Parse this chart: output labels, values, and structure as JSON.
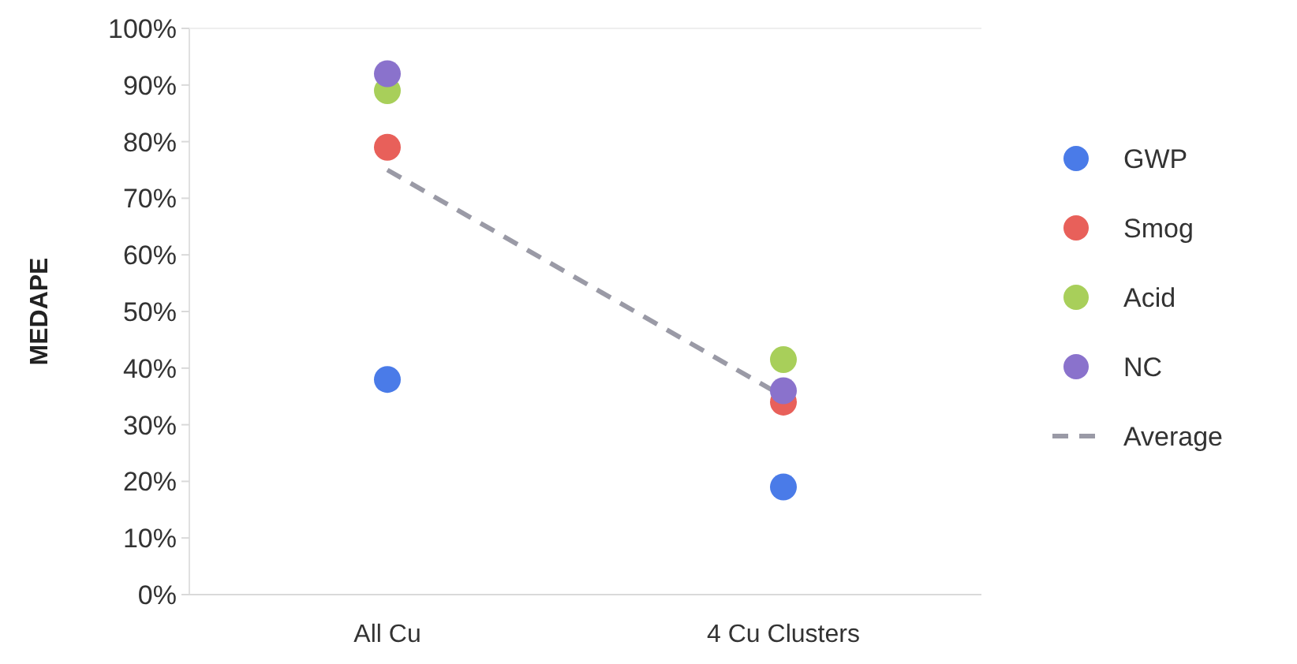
{
  "chart_data": {
    "type": "scatter",
    "ylabel": "MEDAPE",
    "categories": [
      "All Cu",
      "4 Cu Clusters"
    ],
    "ylim": [
      0,
      1
    ],
    "yticks": [
      {
        "value": 0,
        "label": "0%"
      },
      {
        "value": 0.1,
        "label": "10%"
      },
      {
        "value": 0.2,
        "label": "20%"
      },
      {
        "value": 0.3,
        "label": "30%"
      },
      {
        "value": 0.4,
        "label": "40%"
      },
      {
        "value": 0.5,
        "label": "50%"
      },
      {
        "value": 0.6,
        "label": "60%"
      },
      {
        "value": 0.7,
        "label": "70%"
      },
      {
        "value": 0.8,
        "label": "80%"
      },
      {
        "value": 0.9,
        "label": "90%"
      },
      {
        "value": 1,
        "label": "100%"
      }
    ],
    "series": [
      {
        "name": "GWP",
        "color": "#4a7be8",
        "values": [
          0.38,
          0.19
        ]
      },
      {
        "name": "Smog",
        "color": "#e8605a",
        "values": [
          0.79,
          0.34
        ]
      },
      {
        "name": "Acid",
        "color": "#a8cf5a",
        "values": [
          0.89,
          0.415
        ]
      },
      {
        "name": "NC",
        "color": "#8a72cc",
        "values": [
          0.92,
          0.36
        ]
      },
      {
        "name": "Average",
        "type": "line",
        "color": "#9a9aa6",
        "line_style": "dashed",
        "marker": "none",
        "values": [
          0.75,
          0.35
        ]
      }
    ],
    "marker": "circle",
    "grid": false,
    "legend": "right"
  }
}
